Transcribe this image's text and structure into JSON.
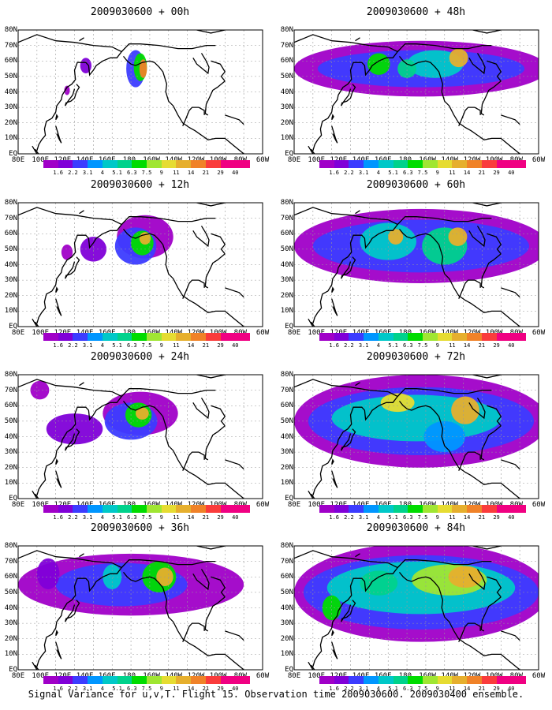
{
  "panels": [
    {
      "title": "2009030600 + 00h",
      "level": 0
    },
    {
      "title": "2009030600 + 12h",
      "level": 1
    },
    {
      "title": "2009030600 + 24h",
      "level": 2
    },
    {
      "title": "2009030600 + 36h",
      "level": 3
    },
    {
      "title": "2009030600 + 48h",
      "level": 4
    },
    {
      "title": "2009030600 + 60h",
      "level": 5
    },
    {
      "title": "2009030600 + 72h",
      "level": 6
    },
    {
      "title": "2009030600 + 84h",
      "level": 7
    }
  ],
  "lat_labels": [
    "80N",
    "70N",
    "60N",
    "50N",
    "40N",
    "30N",
    "20N",
    "10N",
    "EQ"
  ],
  "lon_labels": [
    "80E",
    "100E",
    "120E",
    "140E",
    "160E",
    "180",
    "160W",
    "140W",
    "120W",
    "100W",
    "80W",
    "60W"
  ],
  "colorbar": {
    "levels": [
      "1.6",
      "2.2",
      "3.1",
      "4",
      "5.1",
      "6.3",
      "7.5",
      "9",
      "11",
      "14",
      "21",
      "29",
      "40"
    ],
    "colors": [
      "#a000c8",
      "#8000d8",
      "#3c3cff",
      "#0096ff",
      "#00c8c8",
      "#00d28c",
      "#00dc00",
      "#a0e632",
      "#e6dc32",
      "#e6af2d",
      "#f08228",
      "#fa3c3c",
      "#f00082"
    ]
  },
  "footer": "Signal Variance for u,v,T. Flight 15. Observation time 2009030600. 2009030400 ensemble."
}
